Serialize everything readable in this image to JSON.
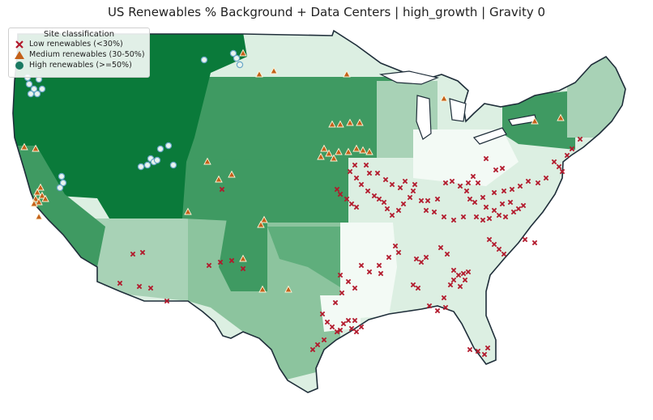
{
  "title": "US Renewables % Background + Data Centers | high_growth | Gravity 0",
  "legend": {
    "title": "Site classification",
    "items": [
      {
        "key": "low",
        "label": "Low renewables (<30%)",
        "marker": "x",
        "color": "#b2182b"
      },
      {
        "key": "medium",
        "label": "Medium renewables (30-50%)",
        "marker": "triangle",
        "color": "#c4611a"
      },
      {
        "key": "high",
        "label": "High renewables (>=50%)",
        "marker": "circle",
        "color": "#1b7a63"
      }
    ]
  },
  "palette": {
    "darkest": "#0a7a3a",
    "dark": "#3f9a62",
    "medium_dark": "#5fae7c",
    "medium": "#8cc49e",
    "light": "#a8d2b6",
    "lighter": "#dcefe2",
    "lightest": "#f3faf5",
    "outline": "#1f2e3a"
  }
}
